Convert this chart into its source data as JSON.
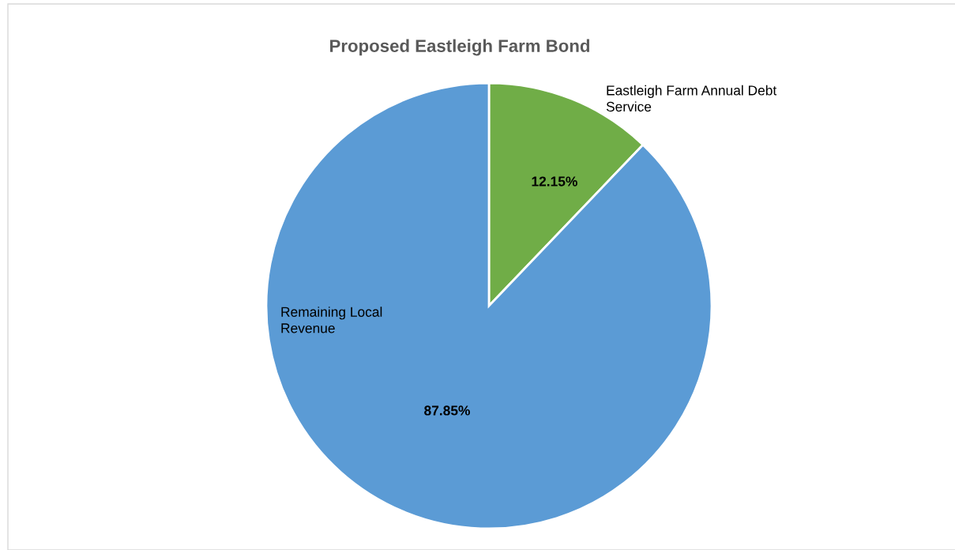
{
  "chart_data": {
    "type": "pie",
    "title": "Proposed Eastleigh Farm Bond",
    "categories": [
      "Eastleigh Farm Annual Debt\nService",
      "Remaining Local\nRevenue"
    ],
    "values": [
      12.15,
      87.85
    ],
    "colors": [
      "#70ad47",
      "#5b9bd5"
    ],
    "value_labels": [
      "12.15%",
      "87.85%"
    ],
    "legend": false
  }
}
